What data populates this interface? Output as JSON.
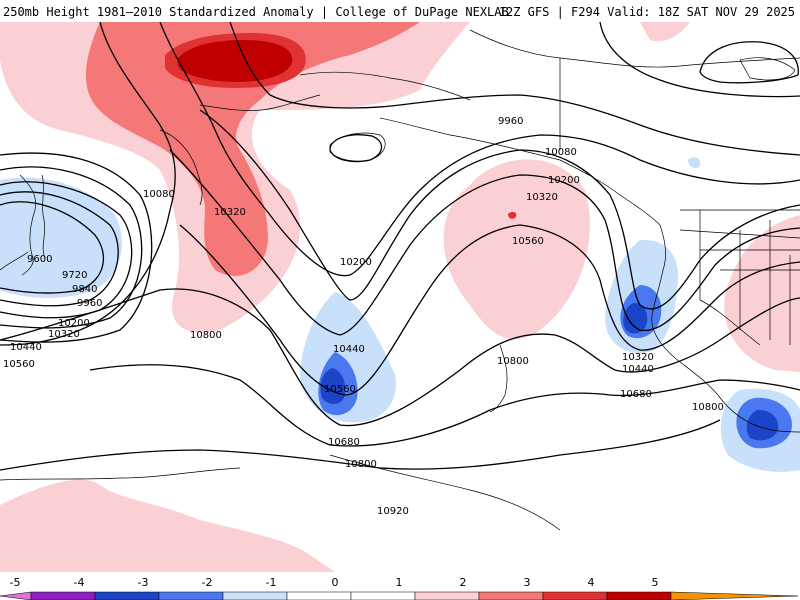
{
  "header": {
    "title_left": "250mb Height 1981–2010 Standardized Anomaly | College of DuPage NEXLAB",
    "title_right": "12Z GFS | F294 Valid: 18Z SAT NOV 29 2025"
  },
  "colors": {
    "neg5": "#e070e0",
    "neg4": "#9020c0",
    "neg3": "#1c44c8",
    "neg2": "#4a78ee",
    "neg1": "#c8e0fa",
    "zero": "#ffffff",
    "pos1": "#fbd0d4",
    "pos2": "#f47878",
    "pos3": "#e03232",
    "pos4": "#c00000",
    "pos5": "#f49400"
  },
  "colorbar": {
    "ticks": [
      "-5",
      "-4",
      "-3",
      "-2",
      "-1",
      "0",
      "1",
      "2",
      "3",
      "4",
      "5"
    ]
  },
  "contour_labels": [
    "9600",
    "9720",
    "9840",
    "9960",
    "10080",
    "10200",
    "10320",
    "10440",
    "10560",
    "10680",
    "10800",
    "10920"
  ]
}
